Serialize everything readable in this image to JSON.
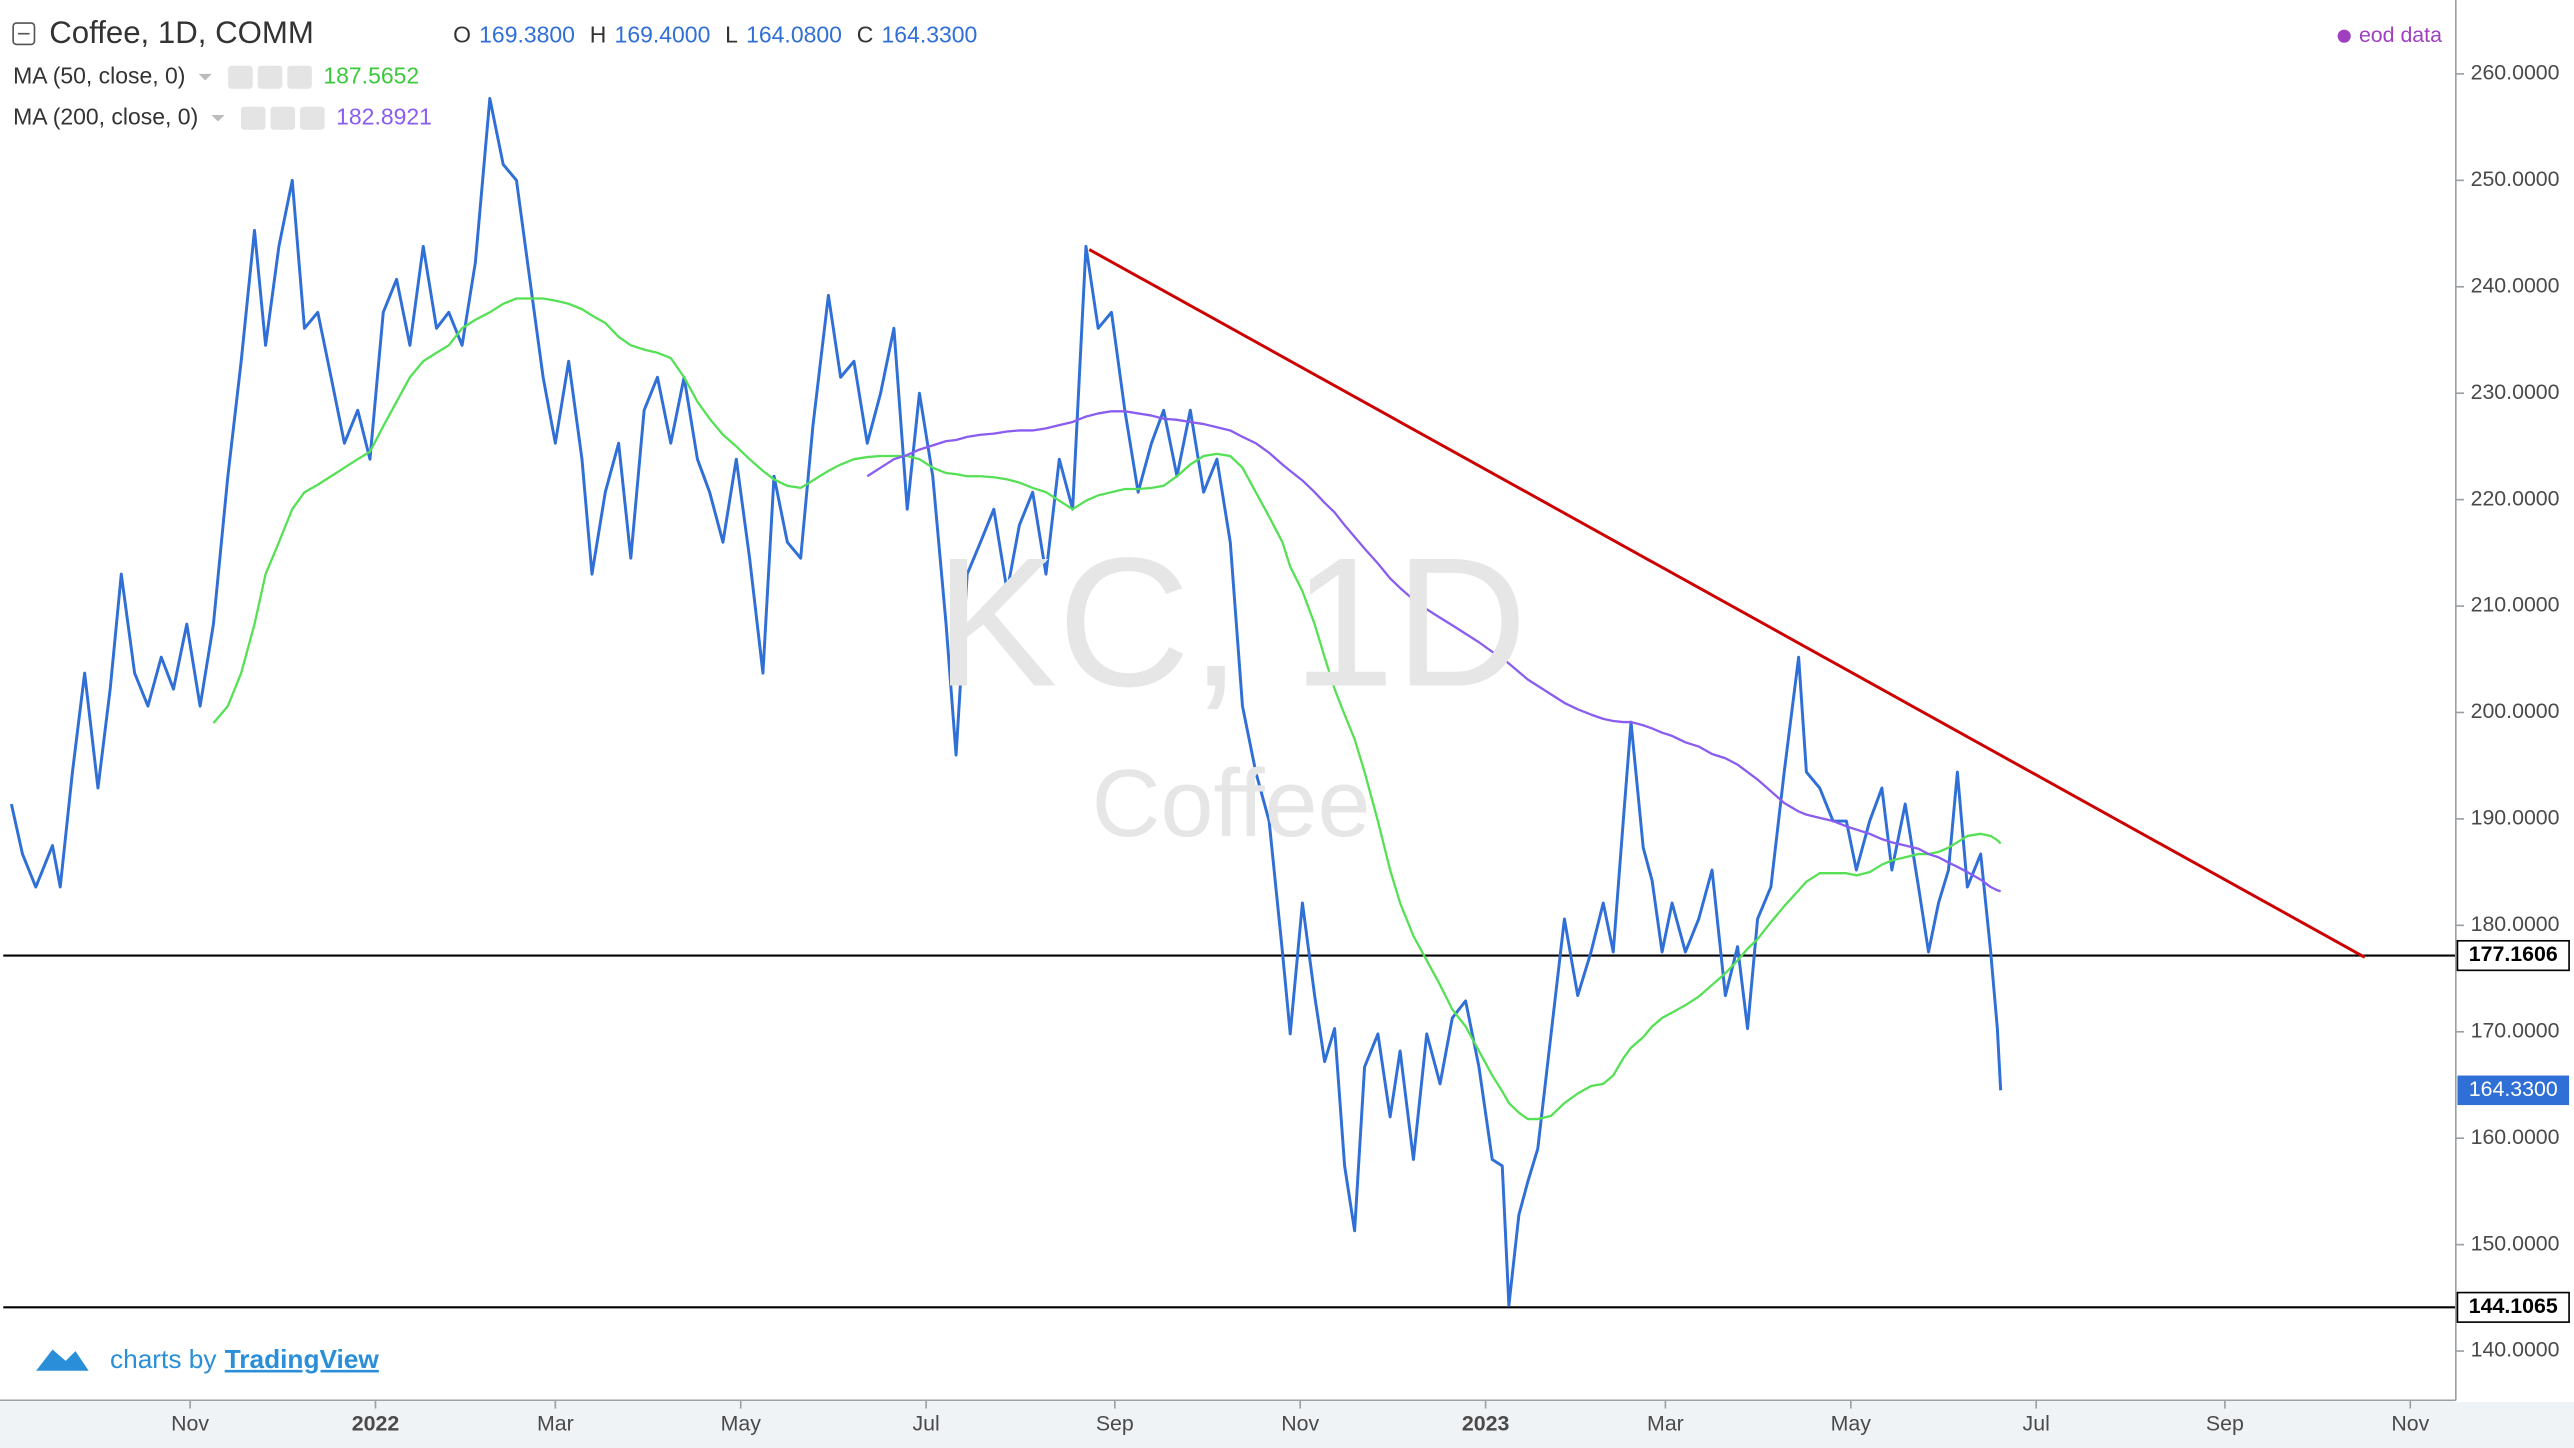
{
  "chart_data": {
    "type": "line",
    "title": "Coffee, 1D, COMM",
    "ohlc": [
      {
        "label": "O",
        "value": "169.3800"
      },
      {
        "label": "H",
        "value": "169.4000"
      },
      {
        "label": "L",
        "value": "164.0800"
      },
      {
        "label": "C",
        "value": "164.3300"
      }
    ],
    "source": "eod data",
    "watermark": [
      "KC, 1D",
      "Coffee"
    ],
    "branding": [
      "charts by",
      "TradingView"
    ],
    "xlim": [
      2021.6647,
      2023.874
    ],
    "ylim": [
      135.37,
      266.94
    ],
    "xticks": [
      {
        "value": 2021.833,
        "label": "Nov"
      },
      2022,
      {
        "value": 2022.162,
        "label": "Mar"
      },
      {
        "value": 2022.329,
        "label": "May"
      },
      {
        "value": 2022.496,
        "label": "Jul"
      },
      {
        "value": 2022.666,
        "label": "Sep"
      },
      {
        "value": 2022.833,
        "label": "Nov"
      },
      2023,
      {
        "value": 2023.162,
        "label": "Mar"
      },
      {
        "value": 2023.329,
        "label": "May"
      },
      {
        "value": 2023.496,
        "label": "Jul"
      },
      {
        "value": 2023.666,
        "label": "Sep"
      },
      {
        "value": 2023.833,
        "label": "Nov"
      }
    ],
    "yticks": [
      {
        "value": 140,
        "label": "140.0000"
      },
      {
        "value": 150,
        "label": "150.0000"
      },
      {
        "value": 160,
        "label": "160.0000"
      },
      {
        "value": 170,
        "label": "170.0000"
      },
      {
        "value": 180,
        "label": "180.0000"
      },
      {
        "value": 190,
        "label": "190.0000"
      },
      {
        "value": 200,
        "label": "200.0000"
      },
      {
        "value": 210,
        "label": "210.0000"
      },
      {
        "value": 220,
        "label": "220.0000"
      },
      {
        "value": 230,
        "label": "230.0000"
      },
      {
        "value": 240,
        "label": "240.0000"
      },
      {
        "value": 250,
        "label": "250.0000"
      },
      {
        "value": 260,
        "label": "260.0000"
      }
    ],
    "grid": false,
    "x": [
      2021.672,
      2021.682,
      2021.694,
      2021.709,
      2021.716,
      2021.727,
      2021.738,
      2021.75,
      2021.761,
      2021.771,
      2021.783,
      2021.795,
      2021.807,
      2021.818,
      2021.83,
      2021.842,
      2021.854,
      2021.867,
      2021.879,
      2021.891,
      2021.901,
      2021.913,
      2021.925,
      2021.936,
      2021.948,
      2021.96,
      2021.972,
      2021.984,
      2021.995,
      2022.007,
      2022.019,
      2022.031,
      2022.043,
      2022.055,
      2022.066,
      2022.078,
      2022.09,
      2022.103,
      2022.115,
      2022.127,
      2022.139,
      2022.151,
      2022.162,
      2022.174,
      2022.186,
      2022.195,
      2022.207,
      2022.219,
      2022.23,
      2022.242,
      2022.254,
      2022.266,
      2022.278,
      2022.29,
      2022.301,
      2022.313,
      2022.325,
      2022.337,
      2022.349,
      2022.359,
      2022.371,
      2022.383,
      2022.394,
      2022.408,
      2022.419,
      2022.431,
      2022.443,
      2022.455,
      2022.467,
      2022.479,
      2022.49,
      2022.502,
      2022.514,
      2022.523,
      2022.533,
      2022.545,
      2022.557,
      2022.569,
      2022.58,
      2022.592,
      2022.604,
      2022.616,
      2022.628,
      2022.64,
      2022.651,
      2022.663,
      2022.675,
      2022.687,
      2022.699,
      2022.71,
      2022.722,
      2022.734,
      2022.746,
      2022.758,
      2022.77,
      2022.781,
      2022.793,
      2022.805,
      2022.817,
      2022.824,
      2022.835,
      2022.846,
      2022.855,
      2022.864,
      2022.873,
      2022.882,
      2022.891,
      2022.903,
      2022.914,
      2022.923,
      2022.935,
      2022.947,
      2022.959,
      2022.97,
      2022.982,
      2022.994,
      2023.006,
      2023.015,
      2023.021,
      2023.03,
      2023.038,
      2023.047,
      2023.059,
      2023.071,
      2023.083,
      2023.095,
      2023.106,
      2023.115,
      2023.124,
      2023.131,
      2023.142,
      2023.15,
      2023.159,
      2023.168,
      2023.18,
      2023.192,
      2023.204,
      2023.216,
      2023.227,
      2023.236,
      2023.245,
      2023.257,
      2023.269,
      2023.282,
      2023.289,
      2023.301,
      2023.313,
      2023.325,
      2023.334,
      2023.346,
      2023.357,
      2023.366,
      2023.378,
      2023.39,
      2023.399,
      2023.408,
      2023.417,
      2023.425,
      2023.434,
      2023.446,
      2023.455,
      2023.461,
      2023.464
    ],
    "series": [
      {
        "name": "Coffee, 1D, COMM",
        "color": "#2f6fd6",
        "value_label": "164.3300",
        "values": [
          191.4,
          186.7,
          183.6,
          187.5,
          183.6,
          194.4,
          203.7,
          192.9,
          202.2,
          213.0,
          203.7,
          200.6,
          205.2,
          202.2,
          208.3,
          200.6,
          208.3,
          222.2,
          233.0,
          245.3,
          234.5,
          243.8,
          250.0,
          236.1,
          237.6,
          231.5,
          225.3,
          228.4,
          223.8,
          237.6,
          240.7,
          234.5,
          243.8,
          236.1,
          237.6,
          234.5,
          242.3,
          257.7,
          251.5,
          250.0,
          240.7,
          231.5,
          225.3,
          233.0,
          223.8,
          213.0,
          220.7,
          225.3,
          214.5,
          228.4,
          231.5,
          225.3,
          231.5,
          223.8,
          220.7,
          216.0,
          223.8,
          214.5,
          203.7,
          222.2,
          216.0,
          214.5,
          226.9,
          239.2,
          231.5,
          233.0,
          225.3,
          230.0,
          236.1,
          219.1,
          230.0,
          222.2,
          208.3,
          196.0,
          213.0,
          216.0,
          219.1,
          211.4,
          217.6,
          220.7,
          213.0,
          223.8,
          219.1,
          243.8,
          236.1,
          237.6,
          228.4,
          220.7,
          225.3,
          228.4,
          222.2,
          228.4,
          220.7,
          223.8,
          216.0,
          200.6,
          194.4,
          189.8,
          177.5,
          169.8,
          182.1,
          173.4,
          167.2,
          170.3,
          157.4,
          151.3,
          166.7,
          169.8,
          162.0,
          168.2,
          158.0,
          169.8,
          165.1,
          171.3,
          172.9,
          166.7,
          158.0,
          157.4,
          144.3,
          152.8,
          155.9,
          159.0,
          169.8,
          180.6,
          173.4,
          177.5,
          182.1,
          177.5,
          189.8,
          199.1,
          187.3,
          184.2,
          177.5,
          182.1,
          177.5,
          180.6,
          185.2,
          173.4,
          178.0,
          170.3,
          180.6,
          183.6,
          194.4,
          205.2,
          194.4,
          192.9,
          189.8,
          189.8,
          185.2,
          189.8,
          192.9,
          185.2,
          191.4,
          183.6,
          177.5,
          182.1,
          185.2,
          194.4,
          183.6,
          186.7,
          177.5,
          170.3,
          164.5
        ]
      },
      {
        "name": "MA (50, close, 0)",
        "color": "#55e055",
        "value_label": "187.5652",
        "values": [
          null,
          null,
          null,
          null,
          null,
          null,
          null,
          null,
          null,
          null,
          null,
          null,
          null,
          null,
          null,
          null,
          199.0,
          200.6,
          203.7,
          208.3,
          213.0,
          216.0,
          219.1,
          220.7,
          221.4,
          222.2,
          223.0,
          223.8,
          224.5,
          226.9,
          229.2,
          231.5,
          233.0,
          233.8,
          234.5,
          236.1,
          236.9,
          237.6,
          238.4,
          238.9,
          238.9,
          238.9,
          238.7,
          238.4,
          237.9,
          237.3,
          236.6,
          235.3,
          234.5,
          234.1,
          233.8,
          233.3,
          231.5,
          229.2,
          227.6,
          226.1,
          225.0,
          223.8,
          222.7,
          221.9,
          221.3,
          221.1,
          221.8,
          222.7,
          223.3,
          223.8,
          224.0,
          224.1,
          224.1,
          224.1,
          223.8,
          223.0,
          222.5,
          222.4,
          222.2,
          222.2,
          222.1,
          221.9,
          221.6,
          221.1,
          220.7,
          219.9,
          219.1,
          219.9,
          220.4,
          220.7,
          221.0,
          221.0,
          221.1,
          221.3,
          222.2,
          223.3,
          224.1,
          224.3,
          224.1,
          223.0,
          220.7,
          218.4,
          216.0,
          213.7,
          211.4,
          208.3,
          205.2,
          202.2,
          199.8,
          197.5,
          194.4,
          189.8,
          185.2,
          182.1,
          179.0,
          176.7,
          174.4,
          172.1,
          170.5,
          168.2,
          165.9,
          164.4,
          163.3,
          162.4,
          161.8,
          161.8,
          162.1,
          163.3,
          164.2,
          164.9,
          165.1,
          165.9,
          167.5,
          168.5,
          169.5,
          170.5,
          171.3,
          171.8,
          172.5,
          173.3,
          174.4,
          175.5,
          176.7,
          177.8,
          178.7,
          180.3,
          181.8,
          183.3,
          184.1,
          184.9,
          184.9,
          184.9,
          184.7,
          185.0,
          185.7,
          186.1,
          186.4,
          186.7,
          186.7,
          186.9,
          187.3,
          187.8,
          188.4,
          188.6,
          188.4,
          188.0,
          187.7
        ]
      },
      {
        "name": "MA (200, close, 0)",
        "color": "#8a5cf0",
        "value_label": "182.8921",
        "values": [
          null,
          null,
          null,
          null,
          null,
          null,
          null,
          null,
          null,
          null,
          null,
          null,
          null,
          null,
          null,
          null,
          null,
          null,
          null,
          null,
          null,
          null,
          null,
          null,
          null,
          null,
          null,
          null,
          null,
          null,
          null,
          null,
          null,
          null,
          null,
          null,
          null,
          null,
          null,
          null,
          null,
          null,
          null,
          null,
          null,
          null,
          null,
          null,
          null,
          null,
          null,
          null,
          null,
          null,
          null,
          null,
          null,
          null,
          null,
          null,
          null,
          null,
          null,
          null,
          null,
          null,
          222.2,
          223.0,
          223.8,
          224.2,
          224.7,
          225.1,
          225.5,
          225.6,
          225.9,
          226.1,
          226.2,
          226.4,
          226.5,
          226.5,
          226.7,
          227.0,
          227.3,
          227.8,
          228.1,
          228.3,
          228.3,
          228.1,
          227.9,
          227.6,
          227.5,
          227.3,
          227.1,
          226.8,
          226.5,
          225.9,
          225.3,
          224.4,
          223.3,
          222.7,
          221.8,
          220.7,
          219.7,
          218.8,
          217.6,
          216.5,
          215.4,
          214.0,
          212.6,
          211.7,
          210.6,
          209.7,
          208.9,
          208.2,
          207.4,
          206.6,
          205.7,
          205.1,
          204.6,
          203.8,
          203.1,
          202.5,
          201.7,
          200.9,
          200.3,
          199.8,
          199.4,
          199.2,
          199.1,
          199.1,
          198.8,
          198.5,
          198.1,
          197.8,
          197.2,
          196.8,
          196.1,
          195.7,
          195.1,
          194.4,
          193.7,
          192.6,
          191.5,
          190.7,
          190.4,
          190.1,
          189.8,
          189.3,
          189.0,
          188.6,
          188.1,
          187.8,
          187.5,
          187.2,
          186.7,
          186.4,
          185.9,
          185.5,
          185.0,
          184.3,
          183.6,
          183.3,
          183.2
        ]
      }
    ],
    "trendline": {
      "x": [
        2022.643,
        2023.792
      ],
      "values": [
        243.5,
        177.0
      ],
      "color": "#cc0000"
    },
    "levels": [
      177.1606,
      144.1065
    ]
  }
}
